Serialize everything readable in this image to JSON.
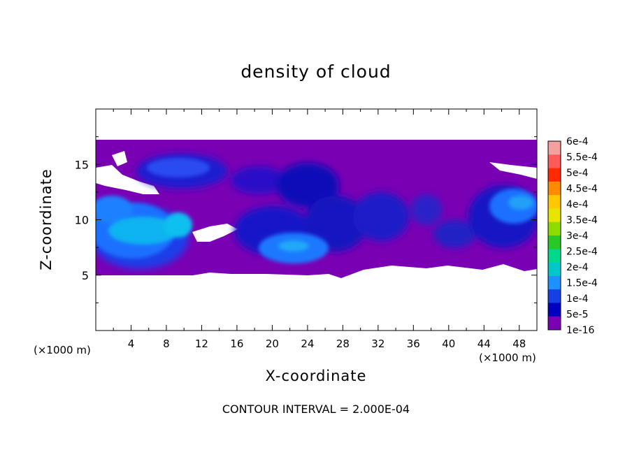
{
  "chart_data": {
    "type": "heatmap",
    "title": "density of cloud",
    "xlabel": "X-coordinate",
    "ylabel": "Z-coordinate",
    "x_unit": "(×1000 m)",
    "x_unit_right": "(×1000 m)",
    "xlim": [
      0,
      50
    ],
    "ylim": [
      0,
      20
    ],
    "xticks": [
      "4",
      "8",
      "12",
      "16",
      "20",
      "24",
      "28",
      "32",
      "36",
      "40",
      "44",
      "48"
    ],
    "yticks": [
      "5",
      "10",
      "15"
    ],
    "colorbar": {
      "labels": [
        "6e-4",
        "5.5e-4",
        "5e-4",
        "4.5e-4",
        "4e-4",
        "3.5e-4",
        "3e-4",
        "2.5e-4",
        "2e-4",
        "1.5e-4",
        "1e-4",
        "5e-5",
        "1e-16"
      ],
      "colors": [
        "#f5a0a0",
        "#ff5a5a",
        "#ff2a00",
        "#ff8c00",
        "#ffc800",
        "#e6e600",
        "#8cdc00",
        "#28c828",
        "#00d88c",
        "#00c8c8",
        "#1e90ff",
        "#1440e6",
        "#0000c0",
        "#7a00b4"
      ]
    },
    "cloud_layer": {
      "base_z": 5,
      "top_z": 17,
      "background_level": "1e-16",
      "max_level_shown": "1.5e-4"
    },
    "footer": "CONTOUR INTERVAL = 2.000E-04"
  }
}
